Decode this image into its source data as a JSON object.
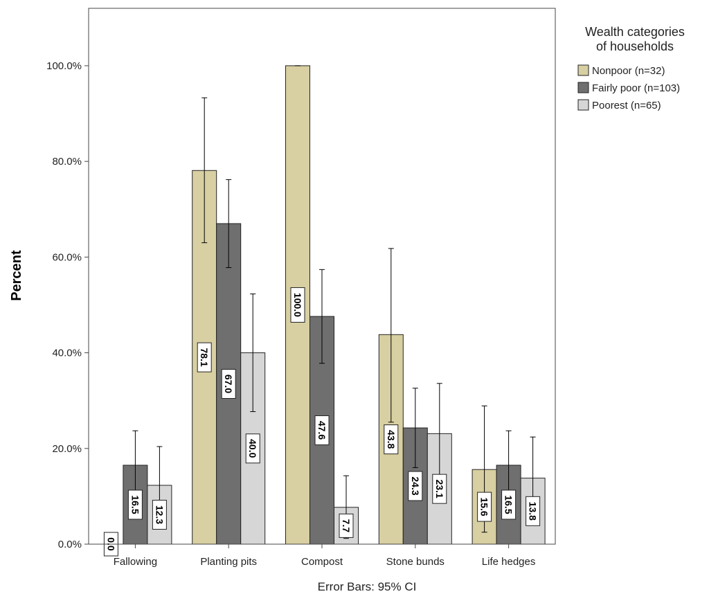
{
  "chart_data": {
    "type": "bar",
    "title": "",
    "ylabel": "Percent",
    "xlabel": "",
    "footnote": "Error Bars: 95% CI",
    "ylim": [
      0,
      112
    ],
    "yticks": [
      0,
      20,
      40,
      60,
      80,
      100
    ],
    "ytick_labels": [
      "0.0%",
      "20.0%",
      "40.0%",
      "60.0%",
      "80.0%",
      "100.0%"
    ],
    "categories": [
      "Fallowing",
      "Planting pits",
      "Compost",
      "Stone bunds",
      "Life hedges"
    ],
    "legend": {
      "title_lines": [
        "Wealth categories",
        "of households"
      ],
      "position": "top-right"
    },
    "series": [
      {
        "name": "Nonpoor (n=32)",
        "color": "#D8CFA2",
        "values": [
          0.0,
          78.1,
          100.0,
          43.8,
          15.6
        ],
        "labels": [
          "0.0",
          "78.1",
          "100.0",
          "43.8",
          "15.6"
        ],
        "ci_low": [
          0.0,
          63.0,
          100.0,
          25.5,
          2.5
        ],
        "ci_high": [
          0.0,
          93.3,
          100.0,
          61.8,
          28.9
        ]
      },
      {
        "name": "Fairly poor (n=103)",
        "color": "#6F6F6F",
        "values": [
          16.5,
          67.0,
          47.6,
          24.3,
          16.5
        ],
        "labels": [
          "16.5",
          "67.0",
          "47.6",
          "24.3",
          "16.5"
        ],
        "ci_low": [
          9.3,
          57.8,
          37.8,
          16.0,
          9.3
        ],
        "ci_high": [
          23.7,
          76.2,
          57.4,
          32.6,
          23.7
        ]
      },
      {
        "name": "Poorest (n=65)",
        "color": "#D6D6D6",
        "values": [
          12.3,
          40.0,
          7.7,
          23.1,
          13.8
        ],
        "labels": [
          "12.3",
          "40.0",
          "7.7",
          "23.1",
          "13.8"
        ],
        "ci_low": [
          4.2,
          27.7,
          1.2,
          12.7,
          5.3
        ],
        "ci_high": [
          20.4,
          52.3,
          14.3,
          33.6,
          22.4
        ]
      }
    ]
  }
}
